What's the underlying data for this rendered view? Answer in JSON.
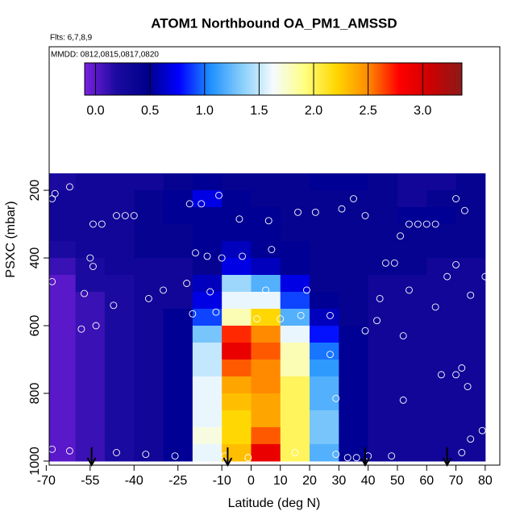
{
  "chart_data": {
    "type": "heatmap",
    "title": "ATOM1 Northbound OA_PM1_AMSSD",
    "subtitle": "Flts: 6,7,8,9",
    "annotation": "MMDD: 0812,0815,0817,0820",
    "x_label": "Latitude (deg N)",
    "y_label": "PSXC (mbar)",
    "xlim": [
      -69,
      85
    ],
    "ylim": [
      1012,
      -224
    ],
    "xticks": [
      -70,
      -55,
      -40,
      -25,
      -10,
      0,
      10,
      20,
      30,
      40,
      50,
      60,
      70,
      80
    ],
    "yticks": [
      200,
      400,
      600,
      800,
      1000
    ],
    "clim": [
      -0.1,
      3.36
    ],
    "cticks": [
      {
        "value": 0,
        "label": "0.0"
      },
      {
        "value": 0.5,
        "label": "0.5"
      },
      {
        "value": 1,
        "label": "1.0"
      },
      {
        "value": 1.5,
        "label": "1.5"
      },
      {
        "value": 2,
        "label": "2.0"
      },
      {
        "value": 2.5,
        "label": "2.5"
      },
      {
        "value": 3,
        "label": "3.0"
      }
    ],
    "colorscale": [
      "#7a20e0",
      "#1c0aa0",
      "#00008b",
      "#0000ff",
      "#1e90ff",
      "#87cefa",
      "#f5fbff",
      "#ffff80",
      "#ffd700",
      "#ff8c00",
      "#ff0000",
      "#cd0000",
      "#8b1a1a"
    ],
    "x": [
      -65,
      -55,
      -45,
      -35,
      -25,
      -15,
      -5,
      5,
      15,
      25,
      35,
      45,
      55,
      65,
      75
    ],
    "y": [
      175,
      225,
      275,
      325,
      375,
      425,
      475,
      525,
      575,
      625,
      675,
      725,
      775,
      825,
      875,
      925,
      975
    ],
    "z": [
      [
        0.2,
        0.3,
        0.3,
        0.3,
        0.4,
        0.5,
        0.4,
        0.4,
        0.4,
        0.5,
        0.5,
        0.4,
        0.3,
        0.3,
        0.4
      ],
      [
        0.3,
        0.3,
        0.3,
        0.4,
        0.5,
        0.7,
        0.5,
        0.4,
        0.4,
        0.4,
        0.4,
        0.4,
        0.3,
        0.4,
        0.4
      ],
      [
        0.3,
        0.3,
        0.3,
        0.4,
        0.5,
        0.5,
        0.5,
        0.5,
        0.4,
        0.4,
        0.4,
        0.4,
        0.5,
        0.5,
        0.4
      ],
      [
        0.3,
        0.3,
        0.3,
        0.4,
        0.4,
        0.5,
        0.5,
        0.5,
        0.4,
        0.4,
        0.4,
        0.4,
        0.4,
        0.4,
        0.4
      ],
      [
        0.2,
        0.3,
        0.3,
        0.4,
        0.4,
        0.5,
        0.6,
        0.5,
        0.5,
        0.4,
        0.4,
        0.4,
        0.4,
        0.4,
        0.4
      ],
      [
        0.1,
        0.2,
        0.3,
        0.3,
        0.3,
        0.4,
        0.7,
        0.6,
        0.5,
        0.4,
        0.4,
        0.4,
        0.4,
        0.3,
        0.3
      ],
      [
        0.0,
        0.2,
        0.2,
        0.3,
        0.3,
        0.6,
        1.4,
        1.2,
        0.7,
        0.4,
        0.4,
        0.3,
        0.3,
        0.3,
        0.3
      ],
      [
        0.0,
        0.1,
        0.2,
        0.3,
        0.3,
        0.7,
        1.6,
        1.6,
        0.9,
        0.5,
        0.4,
        0.3,
        0.3,
        0.3,
        0.3
      ],
      [
        0.0,
        0.1,
        0.2,
        0.3,
        0.5,
        0.9,
        1.8,
        2.2,
        1.2,
        0.6,
        0.4,
        0.3,
        0.3,
        0.3,
        0.3
      ],
      [
        0.0,
        0.1,
        0.2,
        0.3,
        0.5,
        1.3,
        2.7,
        2.5,
        1.6,
        0.8,
        0.5,
        0.3,
        0.3,
        0.3,
        0.3
      ],
      [
        0.0,
        0.1,
        0.2,
        0.3,
        0.5,
        1.5,
        2.9,
        2.6,
        1.8,
        1.0,
        0.5,
        0.3,
        0.3,
        0.3,
        0.3
      ],
      [
        0.0,
        0.1,
        0.2,
        0.3,
        0.5,
        1.5,
        2.6,
        2.5,
        1.8,
        1.1,
        0.5,
        0.3,
        0.3,
        0.3,
        0.3
      ],
      [
        0.0,
        0.1,
        0.2,
        0.3,
        0.5,
        1.6,
        2.4,
        2.5,
        2.0,
        1.2,
        0.5,
        0.3,
        0.3,
        0.3,
        0.3
      ],
      [
        0.0,
        0.1,
        0.2,
        0.3,
        0.5,
        1.6,
        2.3,
        2.4,
        2.0,
        1.2,
        0.5,
        0.3,
        0.3,
        0.3,
        0.3
      ],
      [
        0.0,
        0.1,
        0.2,
        0.3,
        0.5,
        1.6,
        2.2,
        2.4,
        2.0,
        1.3,
        0.5,
        0.3,
        0.3,
        0.3,
        0.3
      ],
      [
        0.0,
        0.1,
        0.2,
        0.3,
        0.5,
        1.7,
        2.2,
        2.6,
        2.0,
        1.3,
        0.5,
        0.3,
        0.3,
        0.3,
        0.3
      ],
      [
        0.0,
        0.1,
        0.2,
        0.3,
        0.5,
        1.6,
        2.3,
        2.9,
        2.0,
        1.2,
        0.5,
        0.3,
        0.3,
        0.3,
        0.3
      ]
    ],
    "points": {
      "x": [
        -68,
        -67,
        -62,
        -54,
        -51,
        -46,
        -43,
        -40,
        -21,
        -17,
        -11,
        -4,
        6,
        16,
        22,
        31,
        35,
        39,
        51,
        54,
        57,
        60,
        63,
        70,
        73,
        -55,
        -54,
        -19,
        -15,
        -10,
        -3,
        7,
        46,
        49,
        70,
        -68,
        -57,
        -47,
        -35,
        -30,
        -22,
        -14,
        5,
        19,
        44,
        54,
        63,
        67,
        75,
        -58,
        -53,
        -20,
        -12,
        2,
        10,
        17,
        27,
        39,
        43,
        52,
        80,
        -68,
        -62,
        -46,
        -36,
        -26,
        -9,
        -1,
        15,
        29,
        40,
        75,
        79,
        33,
        36,
        48,
        72,
        74,
        70,
        65,
        72,
        27,
        29,
        52
      ],
      "y": [
        225,
        210,
        190,
        300,
        300,
        275,
        275,
        275,
        240,
        240,
        215,
        285,
        290,
        265,
        265,
        255,
        225,
        275,
        335,
        300,
        300,
        300,
        300,
        225,
        260,
        400,
        425,
        385,
        395,
        400,
        395,
        375,
        415,
        415,
        420,
        470,
        505,
        540,
        520,
        495,
        475,
        500,
        495,
        495,
        520,
        495,
        545,
        455,
        510,
        610,
        600,
        565,
        560,
        580,
        580,
        570,
        570,
        615,
        585,
        630,
        455,
        965,
        970,
        975,
        980,
        985,
        985,
        990,
        975,
        980,
        985,
        935,
        910,
        990,
        990,
        985,
        975,
        780,
        745,
        745,
        725,
        685,
        815,
        820
      ]
    },
    "arrows_x": [
      -54.5,
      -8,
      39,
      67
    ]
  }
}
